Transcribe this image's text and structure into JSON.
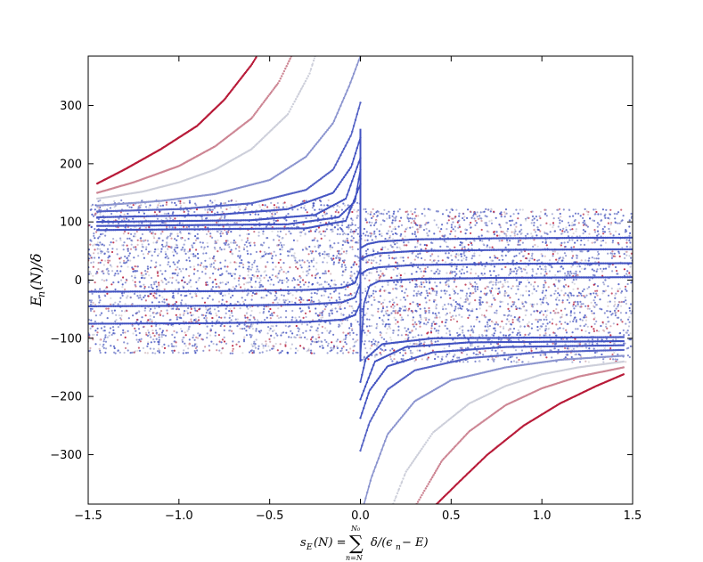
{
  "chart_data": {
    "type": "scatter",
    "title": "",
    "xlabel": "s_E(N) = Σ_{n=N}^{N_0} δ/(ε_n − E)",
    "ylabel": "E_n(N)/δ",
    "xlim": [
      -1.5,
      1.5
    ],
    "ylim": [
      -385,
      385
    ],
    "x_ticks": [
      -1.5,
      -1.0,
      -0.5,
      0.0,
      0.5,
      1.0,
      1.5
    ],
    "x_tick_labels": [
      "−1.5",
      "−1.0",
      "−0.5",
      "0.0",
      "0.5",
      "1.0",
      "1.5"
    ],
    "y_ticks": [
      -300,
      -200,
      -100,
      0,
      100,
      200,
      300
    ],
    "y_tick_labels": [
      "−300",
      "−200",
      "−100",
      "0",
      "100",
      "200",
      "300"
    ],
    "grid": false,
    "legend": "none",
    "colormap": "coolwarm",
    "colors": {
      "low": "#3b4cc0",
      "mid": "#dddddd",
      "high": "#b40426"
    },
    "upper_branch_curves": [
      {
        "color_value": 0.95,
        "points": [
          [
            -1.45,
            166
          ],
          [
            -1.3,
            190
          ],
          [
            -1.1,
            225
          ],
          [
            -0.9,
            265
          ],
          [
            -0.75,
            310
          ],
          [
            -0.6,
            370
          ],
          [
            -0.57,
            385
          ]
        ]
      },
      {
        "color_value": 0.7,
        "points": [
          [
            -1.45,
            150
          ],
          [
            -1.25,
            168
          ],
          [
            -1.0,
            196
          ],
          [
            -0.8,
            230
          ],
          [
            -0.6,
            278
          ],
          [
            -0.45,
            340
          ],
          [
            -0.38,
            385
          ]
        ]
      },
      {
        "color_value": 0.45,
        "points": [
          [
            -1.45,
            140
          ],
          [
            -1.2,
            152
          ],
          [
            -1.0,
            168
          ],
          [
            -0.8,
            190
          ],
          [
            -0.6,
            225
          ],
          [
            -0.4,
            285
          ],
          [
            -0.28,
            355
          ],
          [
            -0.25,
            385
          ]
        ]
      },
      {
        "color_value": 0.25,
        "points": [
          [
            -1.45,
            128
          ],
          [
            -1.1,
            136
          ],
          [
            -0.8,
            148
          ],
          [
            -0.5,
            172
          ],
          [
            -0.3,
            212
          ],
          [
            -0.15,
            270
          ],
          [
            -0.06,
            335
          ],
          [
            0.0,
            385
          ]
        ]
      },
      {
        "color_value": 0.08,
        "points": [
          [
            -1.45,
            118
          ],
          [
            -1.0,
            122
          ],
          [
            -0.6,
            132
          ],
          [
            -0.3,
            155
          ],
          [
            -0.15,
            190
          ],
          [
            -0.05,
            250
          ],
          [
            0.0,
            305
          ]
        ]
      },
      {
        "color_value": 0.03,
        "points": [
          [
            -1.45,
            108
          ],
          [
            -0.8,
            112
          ],
          [
            -0.4,
            122
          ],
          [
            -0.15,
            150
          ],
          [
            -0.05,
            195
          ],
          [
            0.0,
            245
          ]
        ]
      },
      {
        "color_value": 0.02,
        "points": [
          [
            -1.45,
            100
          ],
          [
            -0.6,
            103
          ],
          [
            -0.25,
            112
          ],
          [
            -0.08,
            140
          ],
          [
            0.0,
            210
          ]
        ]
      },
      {
        "color_value": 0.02,
        "points": [
          [
            -1.45,
            93
          ],
          [
            -0.4,
            96
          ],
          [
            -0.12,
            108
          ],
          [
            -0.03,
            135
          ],
          [
            0.0,
            190
          ]
        ]
      },
      {
        "color_value": 0.02,
        "points": [
          [
            -1.45,
            86
          ],
          [
            -0.3,
            89
          ],
          [
            -0.08,
            102
          ],
          [
            0.0,
            165
          ]
        ]
      }
    ],
    "lower_branch_curves": [
      {
        "color_value": 0.95,
        "points": [
          [
            1.45,
            -162
          ],
          [
            1.3,
            -182
          ],
          [
            1.1,
            -212
          ],
          [
            0.9,
            -250
          ],
          [
            0.7,
            -300
          ],
          [
            0.55,
            -345
          ],
          [
            0.42,
            -385
          ]
        ]
      },
      {
        "color_value": 0.7,
        "points": [
          [
            1.45,
            -150
          ],
          [
            1.2,
            -166
          ],
          [
            1.0,
            -186
          ],
          [
            0.8,
            -215
          ],
          [
            0.6,
            -260
          ],
          [
            0.45,
            -310
          ],
          [
            0.31,
            -385
          ]
        ]
      },
      {
        "color_value": 0.45,
        "points": [
          [
            1.45,
            -140
          ],
          [
            1.2,
            -150
          ],
          [
            1.0,
            -162
          ],
          [
            0.8,
            -182
          ],
          [
            0.6,
            -212
          ],
          [
            0.4,
            -262
          ],
          [
            0.25,
            -330
          ],
          [
            0.18,
            -385
          ]
        ]
      },
      {
        "color_value": 0.25,
        "points": [
          [
            1.45,
            -130
          ],
          [
            1.1,
            -137
          ],
          [
            0.8,
            -150
          ],
          [
            0.5,
            -172
          ],
          [
            0.3,
            -208
          ],
          [
            0.15,
            -265
          ],
          [
            0.06,
            -340
          ],
          [
            0.02,
            -385
          ]
        ]
      },
      {
        "color_value": 0.08,
        "points": [
          [
            1.45,
            -120
          ],
          [
            1.0,
            -124
          ],
          [
            0.6,
            -134
          ],
          [
            0.3,
            -155
          ],
          [
            0.15,
            -188
          ],
          [
            0.05,
            -245
          ],
          [
            0.0,
            -293
          ]
        ]
      },
      {
        "color_value": 0.03,
        "points": [
          [
            1.45,
            -112
          ],
          [
            0.8,
            -115
          ],
          [
            0.4,
            -124
          ],
          [
            0.15,
            -148
          ],
          [
            0.05,
            -190
          ],
          [
            0.0,
            -237
          ]
        ]
      },
      {
        "color_value": 0.02,
        "points": [
          [
            1.45,
            -105
          ],
          [
            0.6,
            -107
          ],
          [
            0.25,
            -115
          ],
          [
            0.08,
            -140
          ],
          [
            0.0,
            -205
          ]
        ]
      },
      {
        "color_value": 0.02,
        "points": [
          [
            1.45,
            -98
          ],
          [
            0.4,
            -100
          ],
          [
            0.12,
            -110
          ],
          [
            0.03,
            -135
          ],
          [
            0.0,
            -175
          ]
        ]
      }
    ],
    "middle_branch_curves": [
      {
        "color_value": 0.02,
        "points": [
          [
            0.0,
            55
          ],
          [
            0.04,
            62
          ],
          [
            0.1,
            66
          ],
          [
            0.3,
            70
          ],
          [
            0.8,
            72
          ],
          [
            1.5,
            73
          ]
        ]
      },
      {
        "color_value": 0.02,
        "points": [
          [
            0.0,
            35
          ],
          [
            0.04,
            42
          ],
          [
            0.1,
            46
          ],
          [
            0.3,
            50
          ],
          [
            0.8,
            52
          ],
          [
            1.5,
            53
          ]
        ]
      },
      {
        "color_value": 0.02,
        "points": [
          [
            0.0,
            10
          ],
          [
            0.04,
            18
          ],
          [
            0.1,
            22
          ],
          [
            0.3,
            26
          ],
          [
            0.8,
            28
          ],
          [
            1.5,
            29
          ]
        ]
      },
      {
        "color_value": 0.02,
        "points": [
          [
            0.0,
            -130
          ],
          [
            0.02,
            -40
          ],
          [
            0.05,
            -10
          ],
          [
            0.1,
            -2
          ],
          [
            0.3,
            2
          ],
          [
            0.8,
            4
          ],
          [
            1.5,
            5
          ]
        ]
      },
      {
        "color_value": 0.02,
        "points": [
          [
            -1.5,
            -20
          ],
          [
            -0.8,
            -19
          ],
          [
            -0.3,
            -17
          ],
          [
            -0.1,
            -13
          ],
          [
            -0.03,
            -5
          ],
          [
            0.0,
            20
          ]
        ]
      },
      {
        "color_value": 0.02,
        "points": [
          [
            -1.5,
            -45
          ],
          [
            -0.8,
            -44
          ],
          [
            -0.3,
            -42
          ],
          [
            -0.1,
            -38
          ],
          [
            -0.03,
            -30
          ],
          [
            0.0,
            -5
          ]
        ]
      },
      {
        "color_value": 0.02,
        "points": [
          [
            -1.5,
            -75
          ],
          [
            -0.8,
            -74
          ],
          [
            -0.3,
            -72
          ],
          [
            -0.1,
            -68
          ],
          [
            -0.03,
            -60
          ],
          [
            0.0,
            -40
          ]
        ]
      }
    ],
    "scatter_bands": [
      {
        "x_range": [
          -1.5,
          0.0
        ],
        "y_range": [
          -125,
          140
        ]
      },
      {
        "x_range": [
          0.0,
          1.5
        ],
        "y_range": [
          -140,
          125
        ]
      }
    ]
  }
}
